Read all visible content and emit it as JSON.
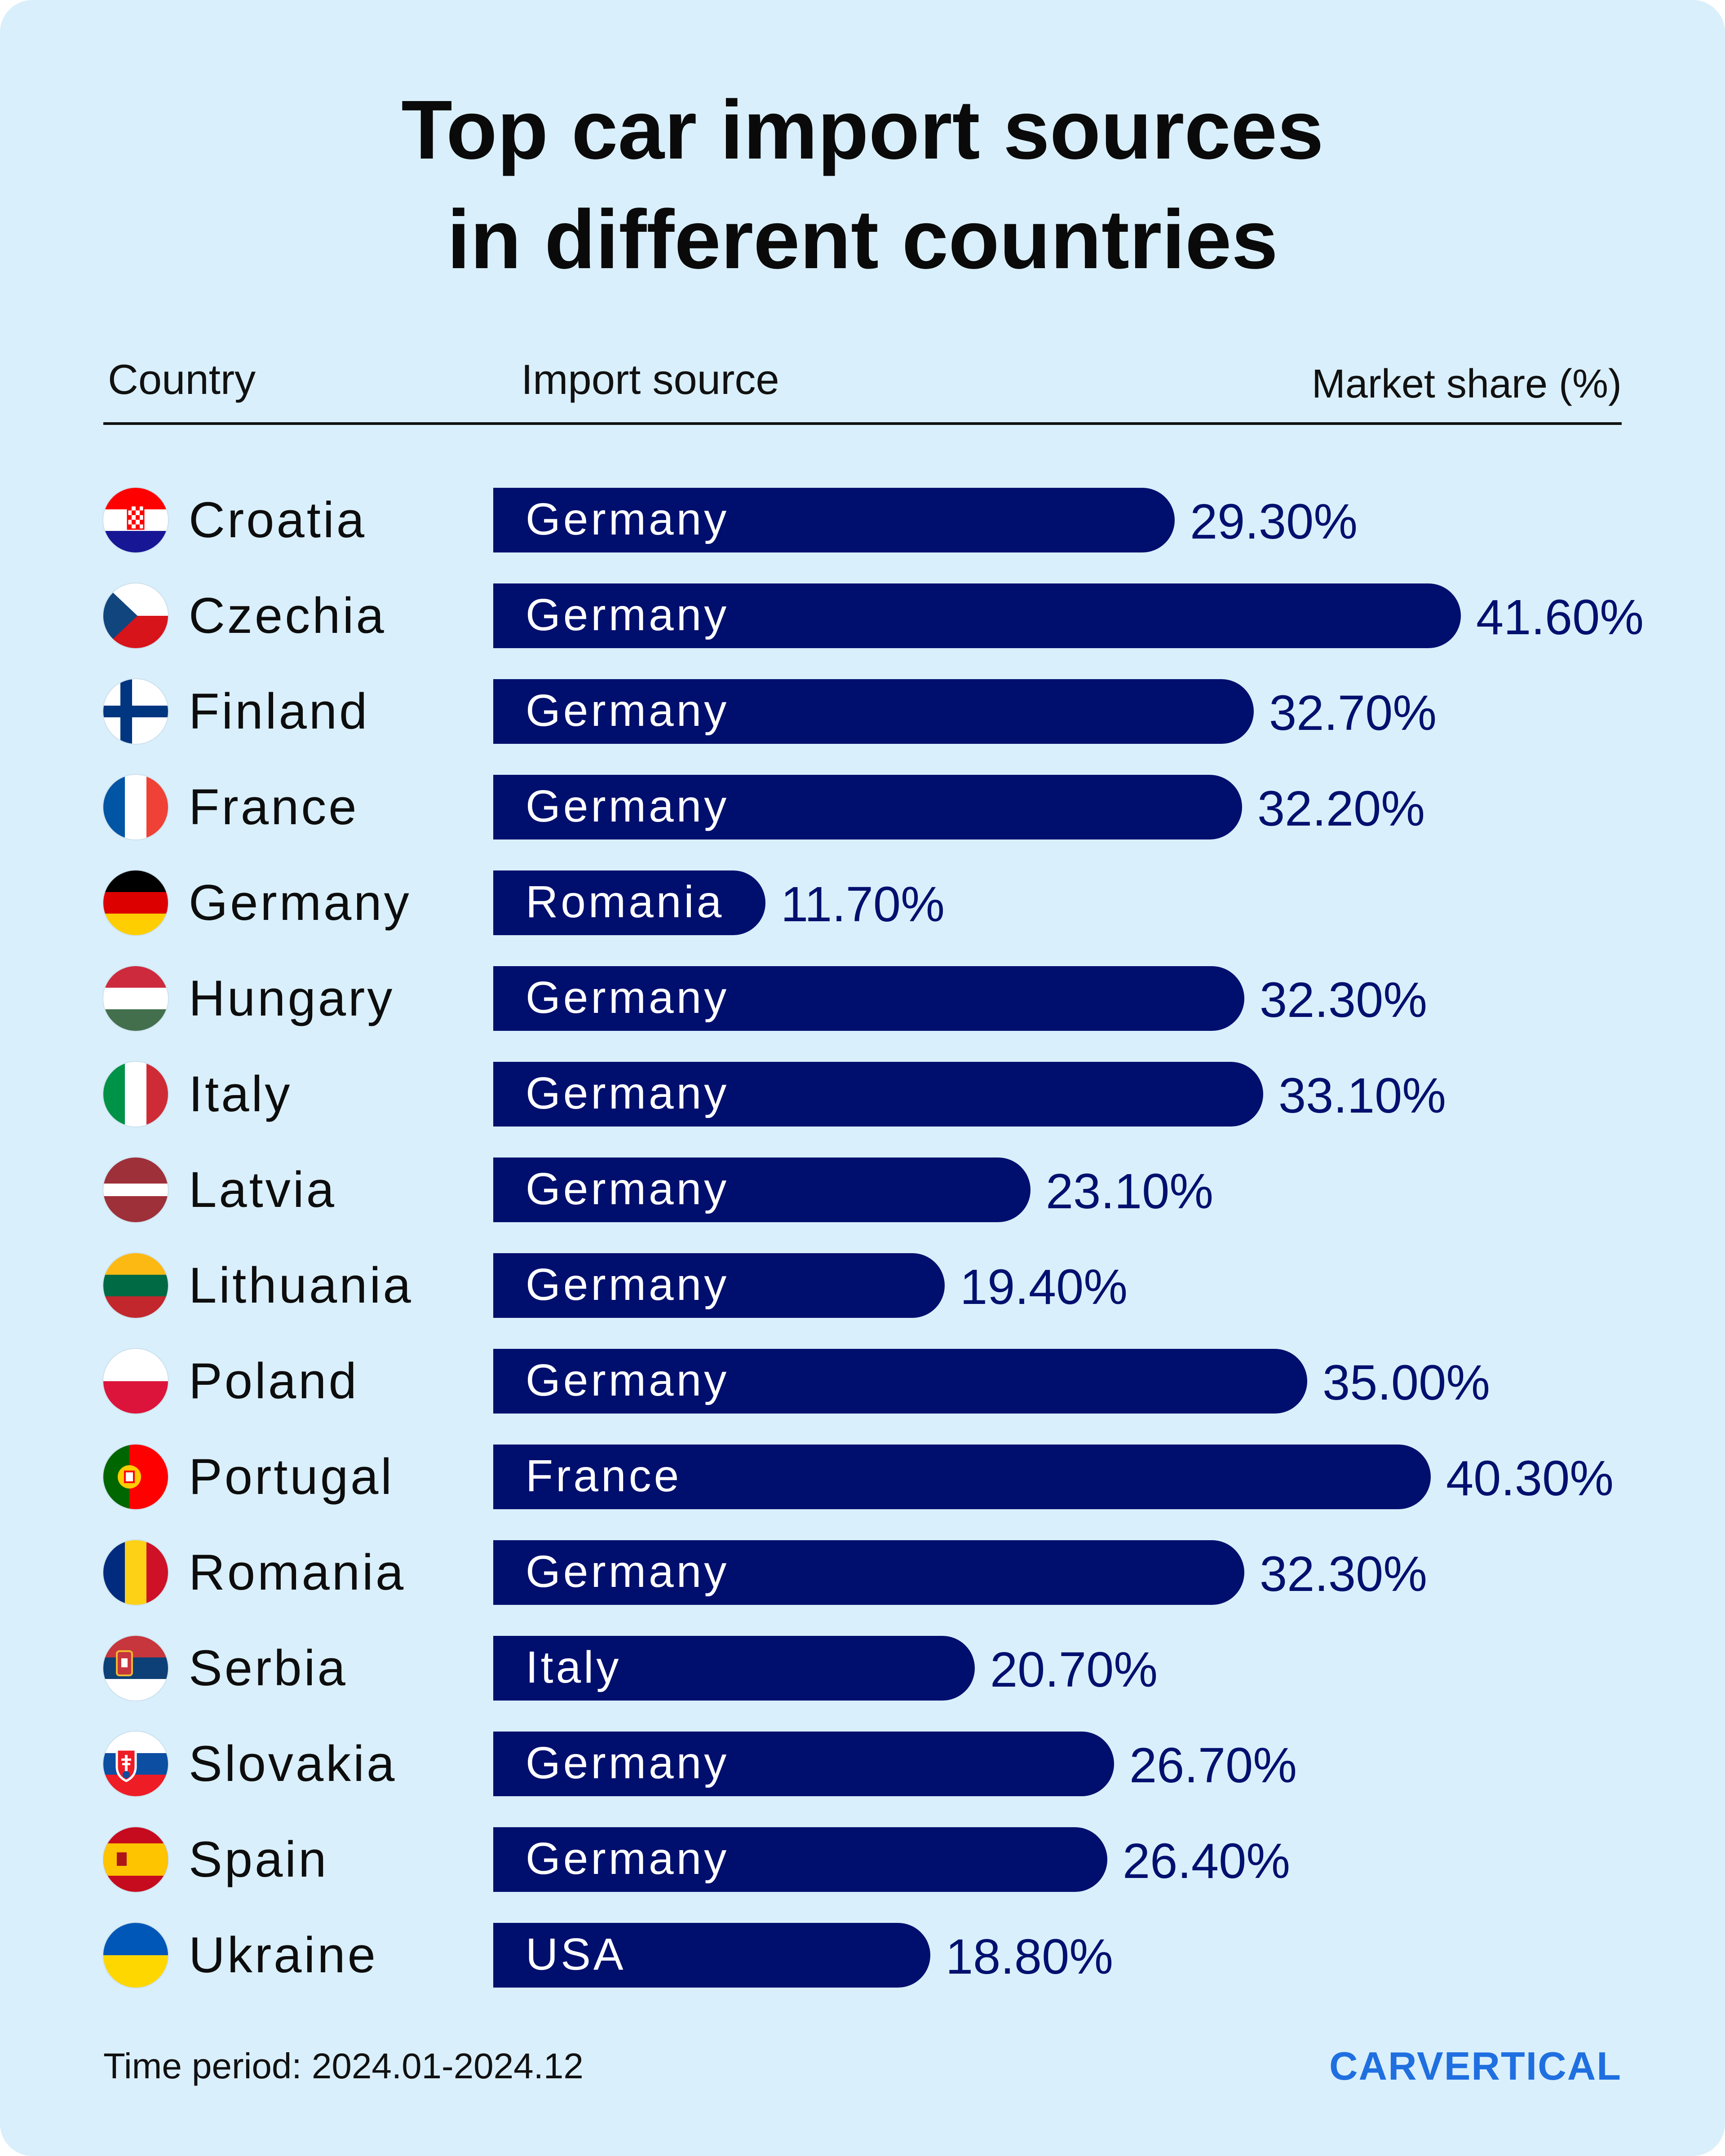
{
  "title_lines": [
    "Top car import sources",
    "in different countries"
  ],
  "headers": {
    "country": "Country",
    "source": "Import source",
    "share": "Market share (%)"
  },
  "chart_data": {
    "type": "bar",
    "orientation": "horizontal",
    "title": "Top car import sources in different countries",
    "unit": "%",
    "categories": [
      "Croatia",
      "Czechia",
      "Finland",
      "France",
      "Germany",
      "Hungary",
      "Italy",
      "Latvia",
      "Lithuania",
      "Poland",
      "Portugal",
      "Romania",
      "Serbia",
      "Slovakia",
      "Spain",
      "Ukraine"
    ],
    "sources": [
      "Germany",
      "Germany",
      "Germany",
      "Germany",
      "Romania",
      "Germany",
      "Germany",
      "Germany",
      "Germany",
      "Germany",
      "France",
      "Germany",
      "Italy",
      "Germany",
      "Germany",
      "USA"
    ],
    "values": [
      29.3,
      41.6,
      32.7,
      32.2,
      11.7,
      32.3,
      33.1,
      23.1,
      19.4,
      35.0,
      40.3,
      32.3,
      20.7,
      26.7,
      26.4,
      18.8
    ],
    "value_labels": [
      "29.30%",
      "41.60%",
      "32.70%",
      "32.20%",
      "11.70%",
      "32.30%",
      "33.10%",
      "23.10%",
      "19.40%",
      "35.00%",
      "40.30%",
      "32.30%",
      "20.70%",
      "26.70%",
      "26.40%",
      "18.80%"
    ],
    "bar_color": "#000f6e",
    "value_color": "#00106e"
  },
  "flags": [
    {
      "icon": "croatia-flag-icon",
      "kind": "h",
      "colors": [
        "#ff0000",
        "#ffffff",
        "#171796"
      ],
      "emblem": "checker"
    },
    {
      "icon": "czechia-flag-icon",
      "kind": "czech",
      "colors": [
        "#ffffff",
        "#d7141a",
        "#11457e"
      ]
    },
    {
      "icon": "finland-flag-icon",
      "kind": "cross",
      "colors": [
        "#ffffff",
        "#003580"
      ]
    },
    {
      "icon": "france-flag-icon",
      "kind": "v",
      "colors": [
        "#0055a4",
        "#ffffff",
        "#ef4135"
      ]
    },
    {
      "icon": "germany-flag-icon",
      "kind": "h",
      "colors": [
        "#000000",
        "#dd0000",
        "#ffce00"
      ]
    },
    {
      "icon": "hungary-flag-icon",
      "kind": "h",
      "colors": [
        "#cd2a3e",
        "#ffffff",
        "#436f4d"
      ]
    },
    {
      "icon": "italy-flag-icon",
      "kind": "v",
      "colors": [
        "#009246",
        "#ffffff",
        "#ce2b37"
      ]
    },
    {
      "icon": "latvia-flag-icon",
      "kind": "latvia",
      "colors": [
        "#9e3039",
        "#ffffff"
      ]
    },
    {
      "icon": "lithuania-flag-icon",
      "kind": "h",
      "colors": [
        "#fdb913",
        "#006a44",
        "#c1272d"
      ]
    },
    {
      "icon": "poland-flag-icon",
      "kind": "h2",
      "colors": [
        "#ffffff",
        "#dc143c"
      ]
    },
    {
      "icon": "portugal-flag-icon",
      "kind": "portugal",
      "colors": [
        "#006600",
        "#ff0000",
        "#ffcc00"
      ]
    },
    {
      "icon": "romania-flag-icon",
      "kind": "v",
      "colors": [
        "#002b7f",
        "#fcd116",
        "#ce1126"
      ]
    },
    {
      "icon": "serbia-flag-icon",
      "kind": "h",
      "colors": [
        "#c6363c",
        "#0c4076",
        "#ffffff"
      ],
      "emblem": "eagle"
    },
    {
      "icon": "slovakia-flag-icon",
      "kind": "h",
      "colors": [
        "#ffffff",
        "#0b4ea2",
        "#ee1c25"
      ],
      "emblem": "shield"
    },
    {
      "icon": "spain-flag-icon",
      "kind": "spain",
      "colors": [
        "#c60b1e",
        "#ffc400"
      ]
    },
    {
      "icon": "ukraine-flag-icon",
      "kind": "h2",
      "colors": [
        "#0057b7",
        "#ffd700"
      ]
    }
  ],
  "footer": {
    "period": "Time period: 2024.01-2024.12",
    "logo": "CARVERTICAL"
  },
  "colors": {
    "background": "#d9effb",
    "bar": "#000f6e",
    "logo": "#1f6fe0"
  }
}
